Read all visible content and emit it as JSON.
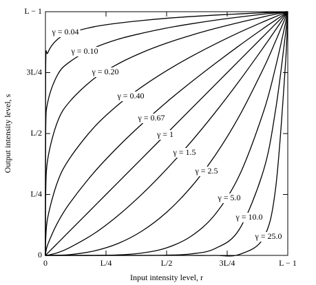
{
  "chart_data": {
    "type": "line",
    "xlabel": "Input intensity level, r",
    "ylabel": "Output intensity level, s",
    "x": [
      0,
      0.001,
      0.01,
      0.05,
      0.1,
      0.2,
      0.3,
      0.4,
      0.5,
      0.6,
      0.7,
      0.8,
      0.9,
      0.95,
      0.99,
      1
    ],
    "xlim": [
      0,
      1
    ],
    "ylim": [
      0,
      1
    ],
    "xticks": [
      0,
      {
        "value": 0.25,
        "label": "L/4"
      },
      {
        "value": 0.5,
        "label": "L/2"
      },
      {
        "value": 0.75,
        "label": "3L/4"
      },
      {
        "value": 1,
        "label": "L − 1"
      }
    ],
    "yticks": [
      0,
      {
        "value": 0.25,
        "label": "L/4"
      },
      {
        "value": 0.5,
        "label": "L/2"
      },
      {
        "value": 0.75,
        "label": "3L/4"
      },
      {
        "value": 1,
        "label": "L − 1"
      }
    ],
    "series": [
      {
        "name": "γ = 0.04",
        "color": "#000000",
        "values": [
          0,
          0.759,
          0.832,
          0.887,
          0.912,
          0.938,
          0.953,
          0.964,
          0.973,
          0.98,
          0.986,
          0.991,
          0.996,
          0.998,
          1,
          1
        ]
      },
      {
        "name": "γ = 0.10",
        "color": "#000000",
        "values": [
          0,
          0.501,
          0.631,
          0.741,
          0.794,
          0.851,
          0.887,
          0.912,
          0.933,
          0.95,
          0.965,
          0.978,
          0.99,
          0.995,
          0.999,
          1
        ]
      },
      {
        "name": "γ = 0.20",
        "color": "#000000",
        "values": [
          0,
          0.251,
          0.398,
          0.549,
          0.631,
          0.725,
          0.786,
          0.833,
          0.871,
          0.903,
          0.931,
          0.956,
          0.979,
          0.99,
          0.998,
          1
        ]
      },
      {
        "name": "γ = 0.40",
        "color": "#000000",
        "values": [
          0,
          0.063,
          0.158,
          0.302,
          0.398,
          0.525,
          0.618,
          0.693,
          0.758,
          0.815,
          0.867,
          0.915,
          0.959,
          0.98,
          0.996,
          1
        ]
      },
      {
        "name": "γ = 0.67",
        "color": "#000000",
        "values": [
          0,
          0.01,
          0.046,
          0.134,
          0.214,
          0.34,
          0.446,
          0.541,
          0.629,
          0.71,
          0.787,
          0.861,
          0.932,
          0.966,
          0.993,
          1
        ]
      },
      {
        "name": "γ = 1",
        "color": "#000000",
        "values": [
          0,
          0.001,
          0.01,
          0.05,
          0.1,
          0.2,
          0.3,
          0.4,
          0.5,
          0.6,
          0.7,
          0.8,
          0.9,
          0.95,
          0.99,
          1
        ]
      },
      {
        "name": "γ = 1.5",
        "color": "#000000",
        "values": [
          0,
          0,
          0.001,
          0.011,
          0.032,
          0.089,
          0.164,
          0.253,
          0.354,
          0.465,
          0.586,
          0.716,
          0.854,
          0.926,
          0.985,
          1
        ]
      },
      {
        "name": "γ = 2.5",
        "color": "#000000",
        "values": [
          0,
          0,
          0,
          0.001,
          0.003,
          0.018,
          0.049,
          0.101,
          0.177,
          0.279,
          0.41,
          0.572,
          0.768,
          0.88,
          0.975,
          1
        ]
      },
      {
        "name": "γ = 5.0",
        "color": "#000000",
        "values": [
          0,
          0,
          0,
          0,
          0,
          0,
          0.002,
          0.01,
          0.031,
          0.078,
          0.168,
          0.328,
          0.59,
          0.774,
          0.951,
          1
        ]
      },
      {
        "name": "γ = 10.0",
        "color": "#000000",
        "values": [
          0,
          0,
          0,
          0,
          0,
          0,
          0,
          0,
          0.001,
          0.006,
          0.028,
          0.107,
          0.349,
          0.599,
          0.904,
          1
        ]
      },
      {
        "name": "γ = 25.0",
        "color": "#000000",
        "values": [
          0,
          0,
          0,
          0,
          0,
          0,
          0,
          0,
          0,
          0,
          0,
          0.004,
          0.072,
          0.277,
          0.778,
          1
        ]
      }
    ]
  }
}
